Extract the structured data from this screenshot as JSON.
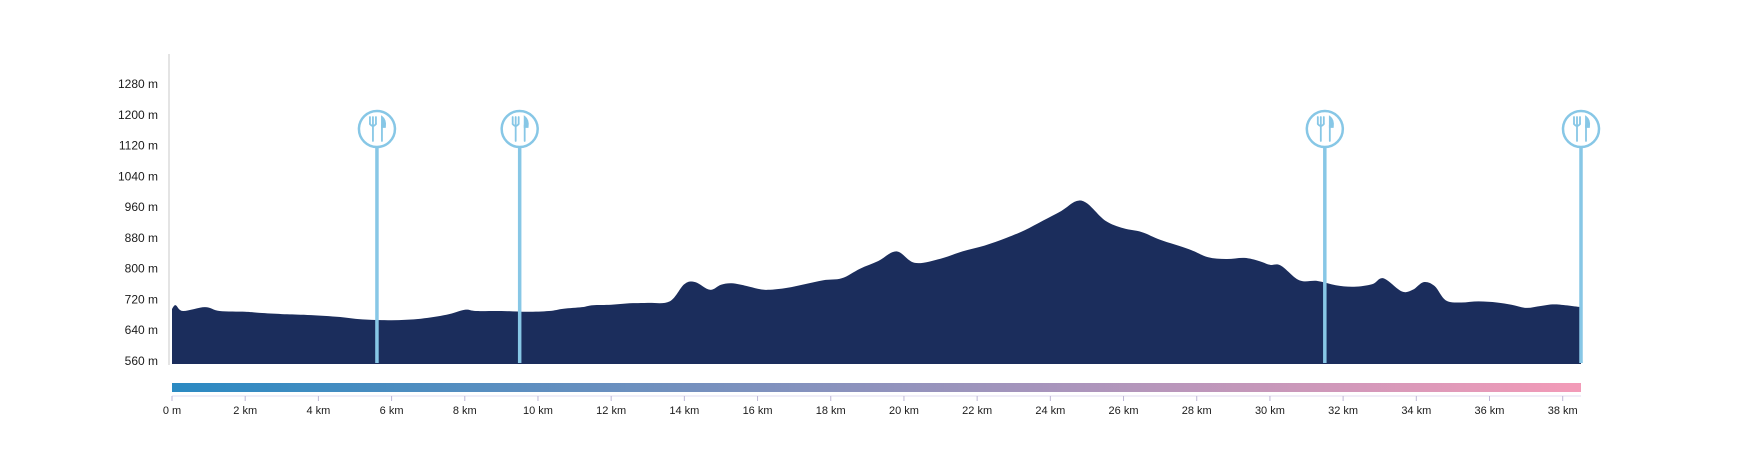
{
  "chart_data": {
    "type": "area",
    "title": "",
    "xlabel": "",
    "ylabel": "",
    "x_unit": "km",
    "y_unit": "m",
    "xlim": [
      0,
      38.5
    ],
    "ylim": [
      560,
      1300
    ],
    "y_ticks": [
      560,
      640,
      720,
      800,
      880,
      960,
      1040,
      1120,
      1200,
      1280
    ],
    "y_tick_labels": [
      "560 m",
      "640 m",
      "720 m",
      "800 m",
      "880 m",
      "960 m",
      "1040 m",
      "1120 m",
      "1200 m",
      "1280 m"
    ],
    "x_ticks": [
      0,
      2,
      4,
      6,
      8,
      10,
      12,
      14,
      16,
      18,
      20,
      22,
      24,
      26,
      28,
      30,
      32,
      34,
      36,
      38
    ],
    "x_tick_labels": [
      "0 m",
      "2 km",
      "4 km",
      "6 km",
      "8 km",
      "10 km",
      "12 km",
      "14 km",
      "16 km",
      "18 km",
      "20 km",
      "22 km",
      "24 km",
      "26 km",
      "28 km",
      "30 km",
      "32 km",
      "34 km",
      "36 km",
      "38 km"
    ],
    "grid": false,
    "series": [
      {
        "color": "#1b2d5c",
        "x": [
          0,
          0.1,
          0.3,
          0.9,
          1.3,
          2.0,
          2.4,
          3.0,
          3.6,
          4.5,
          5.2,
          6.0,
          6.8,
          7.5,
          8.0,
          8.3,
          9.0,
          9.7,
          10.3,
          10.7,
          11.2,
          11.5,
          12.0,
          12.5,
          13.0,
          13.6,
          14.0,
          14.3,
          14.7,
          15.0,
          15.3,
          15.7,
          16.0,
          16.3,
          16.8,
          17.3,
          17.8,
          18.3,
          18.8,
          19.3,
          19.8,
          20.3,
          21.0,
          21.6,
          22.2,
          22.8,
          23.3,
          23.8,
          24.3,
          24.7,
          25.0,
          25.5,
          26.0,
          26.5,
          27.0,
          27.8,
          28.3,
          28.8,
          29.3,
          29.7,
          30.0,
          30.3,
          30.8,
          31.3,
          31.8,
          32.3,
          32.8,
          33.1,
          33.6,
          33.9,
          34.2,
          34.5,
          34.8,
          35.2,
          35.7,
          36.2,
          36.6,
          37.0,
          37.4,
          37.8,
          38.5
        ],
        "y": [
          695,
          705,
          690,
          700,
          690,
          688,
          685,
          682,
          680,
          675,
          668,
          666,
          670,
          680,
          693,
          690,
          690,
          688,
          690,
          696,
          700,
          705,
          706,
          710,
          711,
          715,
          760,
          765,
          745,
          758,
          762,
          755,
          748,
          745,
          750,
          760,
          770,
          775,
          800,
          820,
          845,
          815,
          826,
          845,
          860,
          880,
          900,
          925,
          950,
          975,
          970,
          925,
          905,
          895,
          875,
          850,
          830,
          825,
          828,
          820,
          810,
          808,
          770,
          768,
          757,
          753,
          760,
          775,
          741,
          745,
          765,
          755,
          718,
          712,
          715,
          712,
          706,
          698,
          703,
          707,
          700
        ]
      }
    ],
    "markers": [
      {
        "x": 5.6,
        "icon": "fork-knife-icon",
        "color": "#87c7e6"
      },
      {
        "x": 9.5,
        "icon": "fork-knife-icon",
        "color": "#87c7e6"
      },
      {
        "x": 31.5,
        "icon": "fork-knife-icon",
        "color": "#87c7e6"
      },
      {
        "x": 38.5,
        "icon": "fork-knife-icon",
        "color": "#87c7e6"
      }
    ],
    "gradient_bar": {
      "start_color": "#2b8ac2",
      "end_color": "#f39bb8"
    }
  }
}
